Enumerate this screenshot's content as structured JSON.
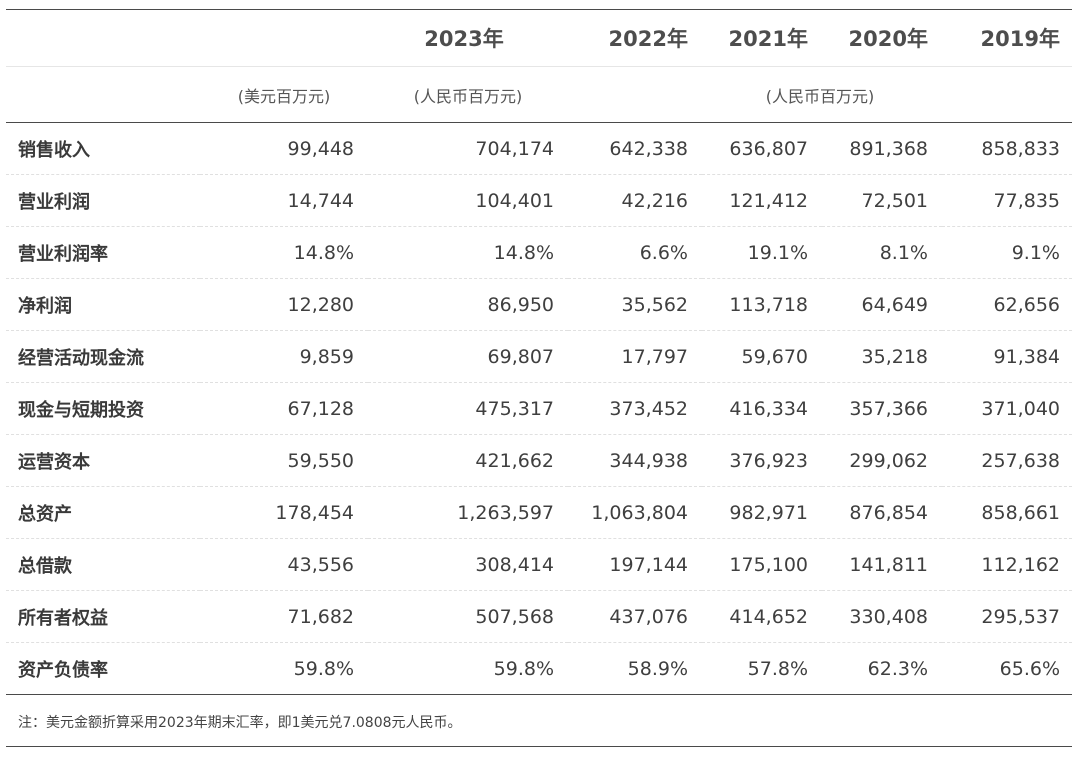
{
  "header": {
    "year_2023": "2023年",
    "year_2022": "2022年",
    "year_2021": "2021年",
    "year_2020": "2020年",
    "year_2019": "2019年",
    "unit_usd": "(美元百万元)",
    "unit_rmb_2023": "(人民币百万元)",
    "unit_rmb_prior": "(人民币百万元)"
  },
  "rows": [
    {
      "label": "销售收入",
      "usd_2023": "99,448",
      "rmb_2023": "704,174",
      "y2022": "642,338",
      "y2021": "636,807",
      "y2020": "891,368",
      "y2019": "858,833"
    },
    {
      "label": "营业利润",
      "usd_2023": "14,744",
      "rmb_2023": "104,401",
      "y2022": "42,216",
      "y2021": "121,412",
      "y2020": "72,501",
      "y2019": "77,835"
    },
    {
      "label": "营业利润率",
      "usd_2023": "14.8%",
      "rmb_2023": "14.8%",
      "y2022": "6.6%",
      "y2021": "19.1%",
      "y2020": "8.1%",
      "y2019": "9.1%"
    },
    {
      "label": "净利润",
      "usd_2023": "12,280",
      "rmb_2023": "86,950",
      "y2022": "35,562",
      "y2021": "113,718",
      "y2020": "64,649",
      "y2019": "62,656"
    },
    {
      "label": "经营活动现金流",
      "usd_2023": "9,859",
      "rmb_2023": "69,807",
      "y2022": "17,797",
      "y2021": "59,670",
      "y2020": "35,218",
      "y2019": "91,384"
    },
    {
      "label": "现金与短期投资",
      "usd_2023": "67,128",
      "rmb_2023": "475,317",
      "y2022": "373,452",
      "y2021": "416,334",
      "y2020": "357,366",
      "y2019": "371,040"
    },
    {
      "label": "运营资本",
      "usd_2023": "59,550",
      "rmb_2023": "421,662",
      "y2022": "344,938",
      "y2021": "376,923",
      "y2020": "299,062",
      "y2019": "257,638"
    },
    {
      "label": "总资产",
      "usd_2023": "178,454",
      "rmb_2023": "1,263,597",
      "y2022": "1,063,804",
      "y2021": "982,971",
      "y2020": "876,854",
      "y2019": "858,661"
    },
    {
      "label": "总借款",
      "usd_2023": "43,556",
      "rmb_2023": "308,414",
      "y2022": "197,144",
      "y2021": "175,100",
      "y2020": "141,811",
      "y2019": "112,162"
    },
    {
      "label": "所有者权益",
      "usd_2023": "71,682",
      "rmb_2023": "507,568",
      "y2022": "437,076",
      "y2021": "414,652",
      "y2020": "330,408",
      "y2019": "295,537"
    },
    {
      "label": "资产负债率",
      "usd_2023": "59.8%",
      "rmb_2023": "59.8%",
      "y2022": "58.9%",
      "y2021": "57.8%",
      "y2020": "62.3%",
      "y2019": "65.6%"
    }
  ],
  "footnote": "注：美元金额折算采用2023年期末汇率，即1美元兑7.0808元人民币。"
}
